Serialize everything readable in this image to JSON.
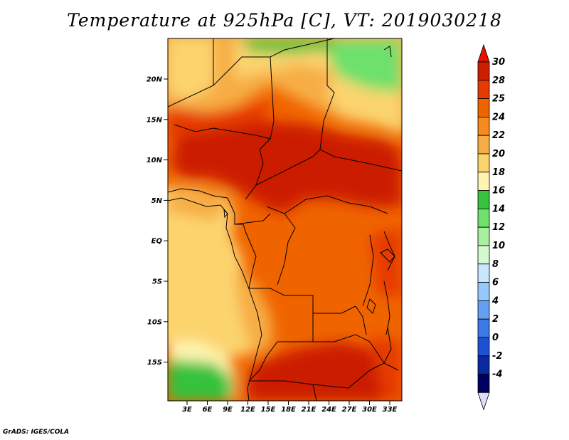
{
  "title": "Temperature at 925hPa [C], VT: 2019030218",
  "credit": "GrADS: IGES/COLA",
  "map": {
    "lat_labels": [
      "20N",
      "15N",
      "10N",
      "5N",
      "EQ",
      "5S",
      "10S",
      "15S"
    ],
    "lon_labels": [
      "3E",
      "6E",
      "9E",
      "12E",
      "15E",
      "18E",
      "21E",
      "24E",
      "27E",
      "30E",
      "33E"
    ]
  },
  "colorbar": {
    "labels": [
      "30",
      "28",
      "25",
      "24",
      "22",
      "20",
      "18",
      "16",
      "14",
      "12",
      "10",
      "8",
      "6",
      "4",
      "2",
      "0",
      "-2",
      "-4"
    ],
    "colors": [
      "#cc1f00",
      "#e63b00",
      "#f06400",
      "#f58a1e",
      "#f7ad45",
      "#fbd46e",
      "#fff5b0",
      "#36c23c",
      "#6ee06c",
      "#a6f0a0",
      "#d4f8d0",
      "#c8e6ff",
      "#96c8fa",
      "#64a0f0",
      "#3c78e6",
      "#1e50d2",
      "#0a28a0",
      "#000060"
    ],
    "top_arrow_color": "#e01400",
    "bottom_arrow_color": "#e0dcf8"
  }
}
